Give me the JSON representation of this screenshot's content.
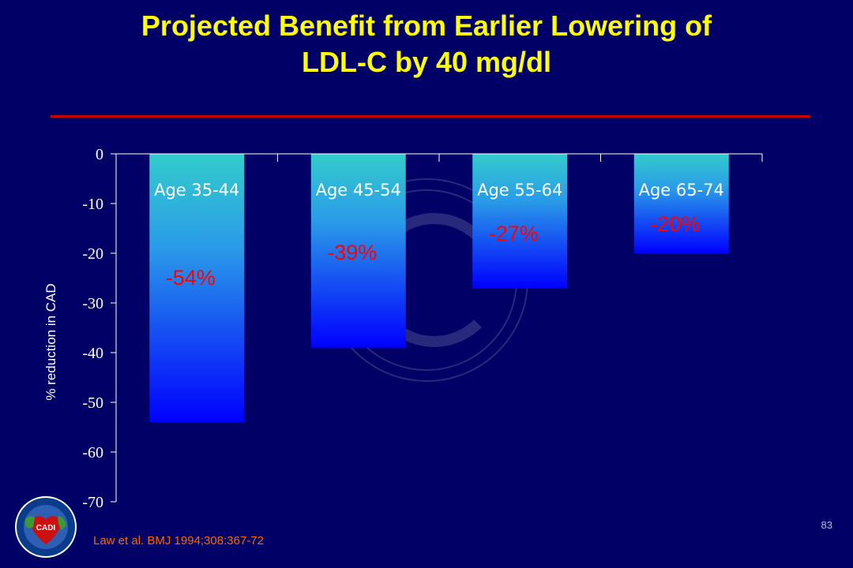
{
  "slide": {
    "title_line1": "Projected Benefit from Earlier Lowering of",
    "title_line2": "LDL-C by 40 mg/dl",
    "slide_number": "83",
    "citation": "Law et al. BMJ 1994;308:367-72",
    "logo_text": "CADI",
    "colors": {
      "background": "#000066",
      "title": "#ffff00",
      "divider": "#cc0000",
      "bar_top": "#33cccc",
      "bar_bottom": "#0000ff",
      "data_label": "#ff0000",
      "citation": "#ff6600"
    }
  },
  "chart_data": {
    "type": "bar",
    "categories": [
      "Age 35-44",
      "Age 45-54",
      "Age 55-64",
      "Age 65-74"
    ],
    "values": [
      -54,
      -39,
      -27,
      -20
    ],
    "data_labels": [
      "-54%",
      "-39%",
      "-27%",
      "-20%"
    ],
    "ylabel": "% reduction in CAD",
    "ylim": [
      -70,
      0
    ],
    "yticks": [
      0,
      -10,
      -20,
      -30,
      -40,
      -50,
      -60,
      -70
    ],
    "grid": false,
    "legend": "none"
  }
}
